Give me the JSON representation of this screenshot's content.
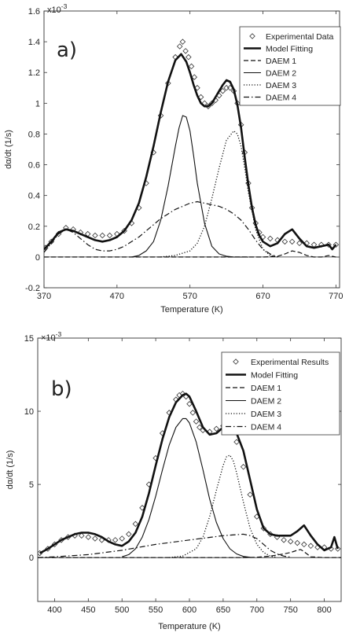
{
  "chart_data": [
    {
      "type": "line",
      "panel_label": "a)",
      "exponent_label": "x10",
      "exponent_power": "-3",
      "xlabel": "Temperature (K)",
      "ylabel": "dα/dt (1/s)",
      "xlim": [
        370,
        775
      ],
      "ylim": [
        -0.2,
        1.6
      ],
      "xticks": [
        "370",
        "470",
        "570",
        "670",
        "770"
      ],
      "xtick_values": [
        370,
        470,
        570,
        670,
        770
      ],
      "yticks": [
        "-0.2",
        "0",
        "0.2",
        "0.4",
        "0.6",
        "0.8",
        "1",
        "1.2",
        "1.4",
        "1.6"
      ],
      "ytick_values": [
        -0.2,
        0,
        0.2,
        0.4,
        0.6,
        0.8,
        1.0,
        1.2,
        1.4,
        1.6
      ],
      "legend_position": "top-right",
      "series": [
        {
          "name": "Experimental Data",
          "style": "marker",
          "x": [
            372,
            380,
            390,
            400,
            410,
            420,
            430,
            440,
            450,
            460,
            470,
            480,
            490,
            500,
            510,
            520,
            530,
            540,
            550,
            556,
            560,
            564,
            568,
            572,
            576,
            580,
            585,
            590,
            595,
            600,
            605,
            610,
            615,
            620,
            625,
            630,
            635,
            640,
            645,
            650,
            655,
            660,
            665,
            670,
            680,
            690,
            700,
            710,
            720,
            730,
            740,
            750,
            760,
            770
          ],
          "y": [
            0.06,
            0.1,
            0.15,
            0.19,
            0.18,
            0.16,
            0.15,
            0.14,
            0.14,
            0.14,
            0.15,
            0.17,
            0.22,
            0.32,
            0.48,
            0.68,
            0.92,
            1.13,
            1.3,
            1.37,
            1.4,
            1.34,
            1.3,
            1.24,
            1.17,
            1.1,
            1.04,
            1.0,
            0.98,
            1.0,
            1.02,
            1.05,
            1.08,
            1.1,
            1.1,
            1.08,
            1.0,
            0.86,
            0.68,
            0.48,
            0.32,
            0.22,
            0.16,
            0.13,
            0.12,
            0.11,
            0.1,
            0.1,
            0.09,
            0.09,
            0.08,
            0.08,
            0.08,
            0.08
          ]
        },
        {
          "name": "Model Fitting",
          "style": "solid-thick",
          "x": [
            370,
            380,
            390,
            400,
            410,
            420,
            430,
            440,
            450,
            460,
            470,
            480,
            490,
            500,
            510,
            520,
            530,
            540,
            550,
            558,
            565,
            570,
            575,
            580,
            585,
            590,
            595,
            600,
            605,
            610,
            615,
            620,
            625,
            630,
            635,
            640,
            645,
            650,
            655,
            660,
            665,
            670,
            680,
            690,
            700,
            710,
            720,
            730,
            740,
            750,
            760,
            765,
            770
          ],
          "y": [
            0.05,
            0.1,
            0.16,
            0.18,
            0.17,
            0.15,
            0.13,
            0.11,
            0.1,
            0.11,
            0.13,
            0.17,
            0.24,
            0.35,
            0.52,
            0.72,
            0.94,
            1.14,
            1.28,
            1.32,
            1.27,
            1.2,
            1.12,
            1.05,
            1.0,
            0.98,
            0.98,
            1.0,
            1.04,
            1.08,
            1.12,
            1.15,
            1.14,
            1.09,
            0.99,
            0.84,
            0.65,
            0.47,
            0.32,
            0.21,
            0.14,
            0.1,
            0.07,
            0.09,
            0.15,
            0.18,
            0.12,
            0.07,
            0.06,
            0.07,
            0.08,
            0.05,
            0.08
          ]
        },
        {
          "name": "DAEM 1",
          "style": "dashed",
          "x": [
            370,
            420,
            470,
            520,
            570,
            620,
            670,
            690,
            700,
            710,
            720,
            730,
            740,
            750,
            760,
            770
          ],
          "y": [
            0,
            0,
            0,
            0,
            0,
            0,
            0,
            0.005,
            0.02,
            0.04,
            0.03,
            0.01,
            0.0,
            0.0,
            0.01,
            0.0
          ]
        },
        {
          "name": "DAEM 2",
          "style": "solid-thin",
          "x": [
            490,
            500,
            510,
            520,
            530,
            540,
            550,
            555,
            560,
            565,
            570,
            575,
            580,
            590,
            600,
            610,
            620,
            630,
            640,
            650
          ],
          "y": [
            0.0,
            0.01,
            0.04,
            0.1,
            0.24,
            0.46,
            0.72,
            0.84,
            0.92,
            0.91,
            0.82,
            0.66,
            0.48,
            0.22,
            0.07,
            0.02,
            0.005,
            0.0,
            0.0,
            0.0
          ]
        },
        {
          "name": "DAEM 3",
          "style": "dotted",
          "x": [
            530,
            550,
            570,
            580,
            590,
            600,
            610,
            620,
            630,
            635,
            640,
            645,
            650,
            660,
            670,
            680,
            690
          ],
          "y": [
            0.0,
            0.01,
            0.04,
            0.09,
            0.2,
            0.38,
            0.58,
            0.76,
            0.82,
            0.8,
            0.72,
            0.58,
            0.42,
            0.18,
            0.05,
            0.01,
            0.0
          ]
        },
        {
          "name": "DAEM 4",
          "style": "dashdot",
          "x": [
            370,
            380,
            390,
            400,
            410,
            420,
            430,
            440,
            450,
            460,
            470,
            480,
            490,
            500,
            510,
            520,
            530,
            540,
            550,
            560,
            570,
            580,
            590,
            600,
            610,
            620,
            630,
            640,
            650,
            660,
            670,
            680,
            690
          ],
          "y": [
            0.03,
            0.09,
            0.15,
            0.18,
            0.16,
            0.12,
            0.08,
            0.05,
            0.04,
            0.04,
            0.05,
            0.07,
            0.1,
            0.13,
            0.17,
            0.21,
            0.25,
            0.28,
            0.31,
            0.33,
            0.35,
            0.36,
            0.35,
            0.34,
            0.33,
            0.31,
            0.28,
            0.24,
            0.18,
            0.11,
            0.05,
            0.02,
            0.0
          ]
        }
      ]
    },
    {
      "type": "line",
      "panel_label": "b)",
      "exponent_label": "×10",
      "exponent_power": "-3",
      "xlabel": "Temperature (K)",
      "ylabel": "dα/dt (1/s)",
      "xlim": [
        375,
        825
      ],
      "ylim": [
        -3,
        15
      ],
      "xticks": [
        "400",
        "450",
        "500",
        "550",
        "600",
        "650",
        "700",
        "750",
        "800"
      ],
      "xtick_values": [
        400,
        450,
        500,
        550,
        600,
        650,
        700,
        750,
        800
      ],
      "yticks": [
        "0",
        "5",
        "10",
        "15"
      ],
      "ytick_values": [
        0,
        5,
        10,
        15
      ],
      "legend_position": "top-right",
      "series": [
        {
          "name": "Experimental Results",
          "style": "marker",
          "x": [
            378,
            390,
            400,
            410,
            420,
            430,
            440,
            450,
            460,
            470,
            480,
            490,
            500,
            510,
            520,
            530,
            540,
            550,
            560,
            570,
            580,
            585,
            590,
            595,
            600,
            605,
            610,
            615,
            620,
            630,
            640,
            650,
            660,
            670,
            680,
            690,
            700,
            710,
            720,
            730,
            740,
            750,
            760,
            770,
            780,
            790,
            800,
            810,
            820
          ],
          "y": [
            0.3,
            0.6,
            0.9,
            1.2,
            1.4,
            1.5,
            1.5,
            1.4,
            1.3,
            1.2,
            1.2,
            1.2,
            1.3,
            1.6,
            2.3,
            3.4,
            5.0,
            6.8,
            8.5,
            9.9,
            10.8,
            11.1,
            11.2,
            11.0,
            10.5,
            9.9,
            9.3,
            8.9,
            8.7,
            8.6,
            8.8,
            9.0,
            8.8,
            7.9,
            6.2,
            4.3,
            2.8,
            2.0,
            1.6,
            1.4,
            1.2,
            1.1,
            1.0,
            0.9,
            0.8,
            0.7,
            0.7,
            0.6,
            0.6
          ]
        },
        {
          "name": "Model Fitting",
          "style": "solid-thick",
          "x": [
            378,
            390,
            400,
            410,
            420,
            430,
            440,
            450,
            460,
            470,
            480,
            490,
            500,
            510,
            520,
            530,
            540,
            550,
            560,
            570,
            580,
            590,
            595,
            600,
            610,
            620,
            630,
            640,
            650,
            660,
            670,
            680,
            690,
            700,
            710,
            720,
            730,
            740,
            750,
            760,
            770,
            780,
            790,
            800,
            810,
            815,
            820
          ],
          "y": [
            0.3,
            0.6,
            0.9,
            1.2,
            1.4,
            1.6,
            1.7,
            1.7,
            1.6,
            1.4,
            1.1,
            0.9,
            0.8,
            1.1,
            1.7,
            2.8,
            4.4,
            6.3,
            8.1,
            9.6,
            10.6,
            11.1,
            11.2,
            11.0,
            10.0,
            8.9,
            8.4,
            8.5,
            8.9,
            9.0,
            8.5,
            7.3,
            5.3,
            3.3,
            2.0,
            1.6,
            1.5,
            1.5,
            1.5,
            1.8,
            2.2,
            1.5,
            0.9,
            0.5,
            0.7,
            1.4,
            0.6
          ]
        },
        {
          "name": "DAEM 1",
          "style": "dashed",
          "x": [
            375,
            425,
            475,
            525,
            575,
            625,
            675,
            700,
            720,
            740,
            750,
            760,
            765,
            770,
            780,
            800,
            825
          ],
          "y": [
            0,
            0,
            0,
            0,
            0,
            0,
            0,
            0.02,
            0.1,
            0.25,
            0.35,
            0.5,
            0.55,
            0.4,
            0.05,
            0,
            0
          ]
        },
        {
          "name": "DAEM 2",
          "style": "solid-thin",
          "x": [
            500,
            510,
            520,
            530,
            540,
            550,
            560,
            570,
            580,
            590,
            595,
            600,
            610,
            620,
            630,
            640,
            650,
            660,
            670,
            680,
            690
          ],
          "y": [
            0.05,
            0.2,
            0.6,
            1.4,
            2.6,
            4.2,
            6.0,
            7.7,
            8.9,
            9.5,
            9.5,
            9.2,
            7.9,
            6.0,
            4.0,
            2.4,
            1.3,
            0.6,
            0.25,
            0.08,
            0.02
          ]
        },
        {
          "name": "DAEM 3",
          "style": "dotted",
          "x": [
            570,
            590,
            610,
            620,
            630,
            640,
            650,
            655,
            660,
            665,
            670,
            680,
            690,
            700,
            710,
            720,
            730
          ],
          "y": [
            0.0,
            0.1,
            0.6,
            1.4,
            2.8,
            4.6,
            6.3,
            6.9,
            7.0,
            6.6,
            5.8,
            3.8,
            2.0,
            0.9,
            0.35,
            0.1,
            0.02
          ]
        },
        {
          "name": "DAEM 4",
          "style": "dashdot",
          "x": [
            375,
            400,
            450,
            500,
            550,
            600,
            650,
            680,
            690,
            700,
            710,
            720,
            730,
            740,
            750
          ],
          "y": [
            0.0,
            0.05,
            0.2,
            0.5,
            0.9,
            1.2,
            1.5,
            1.6,
            1.5,
            1.3,
            0.9,
            0.5,
            0.25,
            0.1,
            0.03
          ]
        }
      ]
    }
  ]
}
